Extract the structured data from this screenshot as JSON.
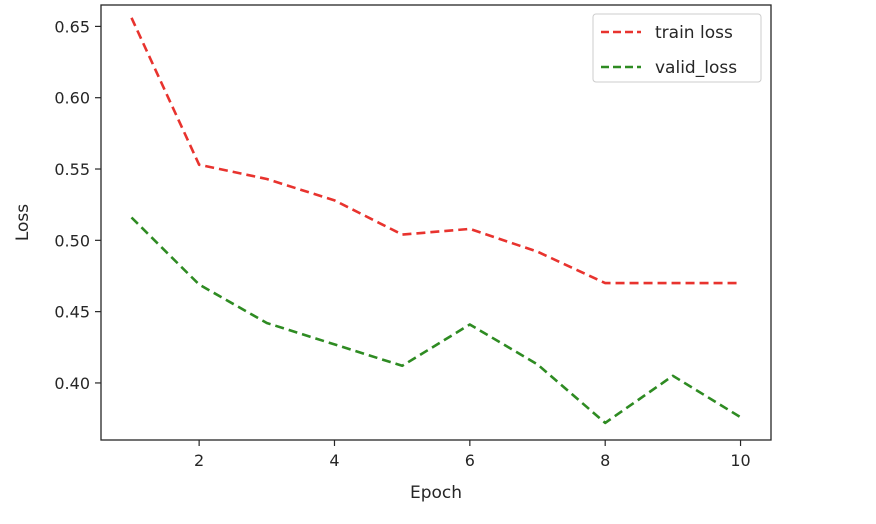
{
  "chart_data": {
    "type": "line",
    "title": "",
    "xlabel": "Epoch",
    "ylabel": "Loss",
    "xlim": [
      0.55,
      10.45
    ],
    "ylim": [
      0.36,
      0.665
    ],
    "xticks": [
      2,
      4,
      6,
      8,
      10
    ],
    "yticks": [
      0.4,
      0.45,
      0.5,
      0.55,
      0.6,
      0.65
    ],
    "xtick_labels": [
      "2",
      "4",
      "6",
      "8",
      "10"
    ],
    "ytick_labels": [
      "0.40",
      "0.45",
      "0.50",
      "0.55",
      "0.60",
      "0.65"
    ],
    "grid": false,
    "legend_position": "top-right",
    "x": [
      1,
      2,
      3,
      4,
      5,
      6,
      7,
      8,
      9,
      10
    ],
    "series": [
      {
        "name": "train loss",
        "color": "#e8332e",
        "line_style": "dashed",
        "values": [
          0.656,
          0.553,
          0.543,
          0.528,
          0.504,
          0.508,
          0.492,
          0.47,
          0.47,
          0.47
        ]
      },
      {
        "name": "valid_loss",
        "color": "#2e8b22",
        "line_style": "dashed",
        "values": [
          0.516,
          0.469,
          0.442,
          0.427,
          0.412,
          0.441,
          0.413,
          0.372,
          0.405,
          0.376
        ]
      }
    ]
  }
}
